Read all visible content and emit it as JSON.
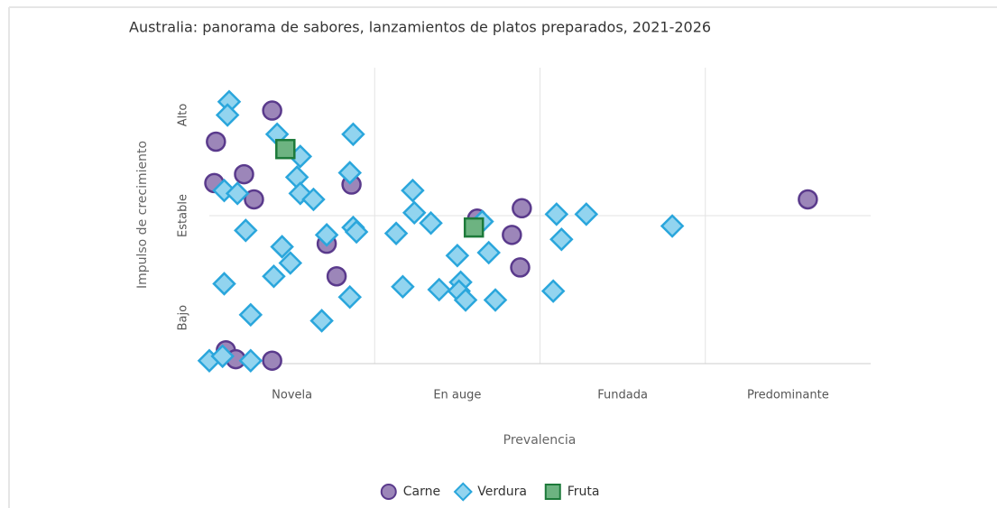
{
  "chart_data": {
    "type": "scatter",
    "title": "Australia: panorama de sabores, lanzamientos de platos preparados, 2021-2026",
    "xlabel": "Prevalencia",
    "ylabel": "Impulso de crecimiento",
    "xlim": [
      0,
      4
    ],
    "ylim": [
      0,
      2
    ],
    "xticks": [
      {
        "value": 0.5,
        "label": "Novela"
      },
      {
        "value": 1.5,
        "label": "En auge"
      },
      {
        "value": 2.5,
        "label": "Fundada"
      },
      {
        "value": 3.5,
        "label": "Predominante"
      }
    ],
    "yticks": [
      {
        "value": 0.31,
        "label": "Bajo"
      },
      {
        "value": 1,
        "label": "Estable"
      },
      {
        "value": 1.68,
        "label": "Alto"
      }
    ],
    "xgrid": [
      1,
      2,
      3
    ],
    "ygrid": [
      1
    ],
    "legend": "bottom",
    "series": [
      {
        "name": "Carne",
        "marker": "circle",
        "color": "#9c86b9",
        "edgecolor": "#5a3a8c",
        "x": [
          0.04,
          0.38,
          0.21,
          0.03,
          0.27,
          0.86,
          0.71,
          0.77,
          0.1,
          0.16,
          0.38,
          1.62,
          1.89,
          1.83,
          1.88,
          3.62
        ],
        "values": [
          1.5,
          1.71,
          1.28,
          1.22,
          1.11,
          1.21,
          0.81,
          0.59,
          0.09,
          0.03,
          0.02,
          0.98,
          1.05,
          0.87,
          0.65,
          1.11
        ]
      },
      {
        "name": "Verdura",
        "marker": "diamond",
        "color": "#92d4ef",
        "edgecolor": "#2aa6dc",
        "x": [
          0.12,
          0.11,
          0.41,
          0.87,
          0.55,
          0.53,
          0.85,
          0.09,
          0.17,
          0.55,
          0.63,
          0.22,
          0.71,
          0.87,
          0.89,
          0.44,
          0.49,
          0.39,
          0.09,
          0.85,
          0.25,
          0.68,
          0.0,
          0.08,
          0.25,
          1.23,
          1.24,
          1.34,
          1.13,
          1.65,
          1.5,
          1.69,
          2.1,
          2.28,
          2.13,
          2.8,
          1.17,
          1.39,
          1.52,
          1.51,
          1.55,
          1.73,
          2.08
        ],
        "values": [
          1.77,
          1.68,
          1.55,
          1.55,
          1.4,
          1.26,
          1.29,
          1.17,
          1.15,
          1.15,
          1.11,
          0.9,
          0.87,
          0.92,
          0.89,
          0.79,
          0.68,
          0.59,
          0.54,
          0.45,
          0.33,
          0.29,
          0.02,
          0.05,
          0.02,
          1.17,
          1.02,
          0.95,
          0.88,
          0.96,
          0.73,
          0.75,
          1.01,
          1.01,
          0.84,
          0.93,
          0.52,
          0.5,
          0.55,
          0.49,
          0.43,
          0.43,
          0.49
        ]
      },
      {
        "name": "Fruta",
        "marker": "square",
        "color": "#6db381",
        "edgecolor": "#1d7a3a",
        "x": [
          0.46,
          1.6
        ],
        "values": [
          1.45,
          0.92
        ]
      }
    ]
  }
}
